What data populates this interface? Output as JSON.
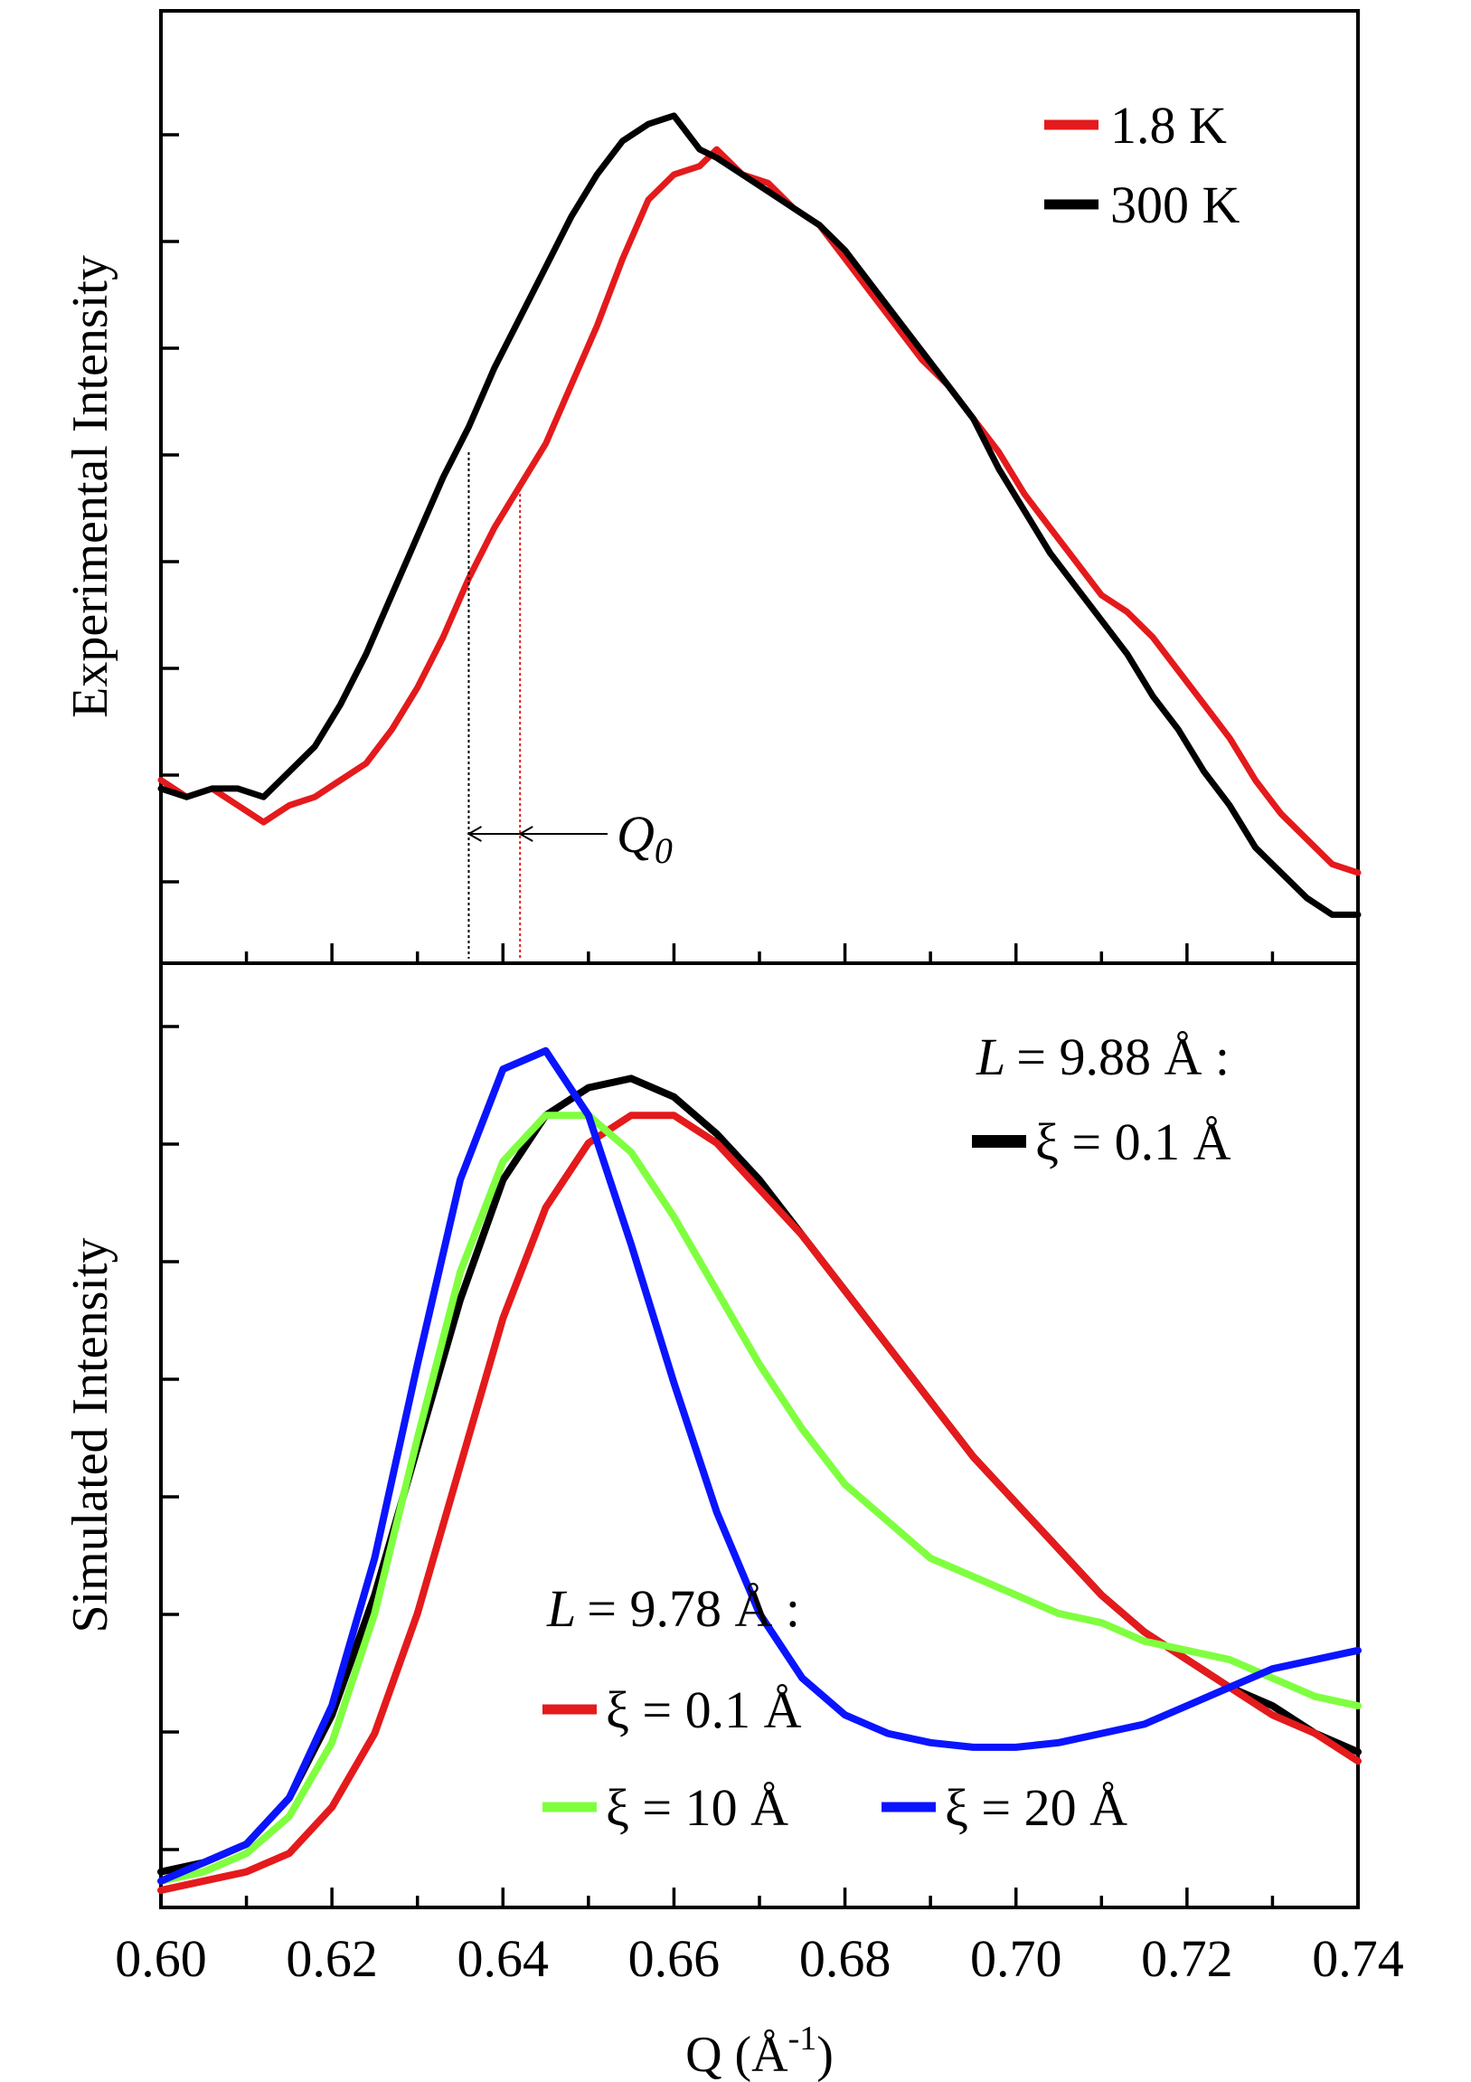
{
  "chart_data": [
    {
      "type": "line",
      "panel": "top",
      "ylabel": "Experimental Intensity",
      "xlim": [
        0.6,
        0.74
      ],
      "x_tick_step": 0.01,
      "y_ticks": "unlabeled",
      "annotation": {
        "text": "Q",
        "subscript": "0",
        "q_300K": 0.636,
        "q_1_8K": 0.642
      },
      "series": [
        {
          "name": "1.8 K",
          "color": "#e41a1c",
          "x": [
            0.6,
            0.603,
            0.606,
            0.609,
            0.612,
            0.615,
            0.618,
            0.621,
            0.624,
            0.627,
            0.63,
            0.633,
            0.636,
            0.639,
            0.642,
            0.645,
            0.648,
            0.651,
            0.654,
            0.657,
            0.66,
            0.663,
            0.665,
            0.668,
            0.671,
            0.674,
            0.677,
            0.68,
            0.683,
            0.686,
            0.689,
            0.692,
            0.695,
            0.698,
            0.701,
            0.704,
            0.707,
            0.71,
            0.713,
            0.716,
            0.719,
            0.722,
            0.725,
            0.728,
            0.731,
            0.734,
            0.737,
            0.74
          ],
          "y": [
            0.18,
            0.16,
            0.17,
            0.15,
            0.13,
            0.15,
            0.16,
            0.18,
            0.2,
            0.24,
            0.29,
            0.35,
            0.42,
            0.48,
            0.53,
            0.58,
            0.65,
            0.72,
            0.8,
            0.87,
            0.9,
            0.91,
            0.93,
            0.9,
            0.89,
            0.86,
            0.84,
            0.8,
            0.76,
            0.72,
            0.68,
            0.65,
            0.61,
            0.57,
            0.52,
            0.48,
            0.44,
            0.4,
            0.38,
            0.35,
            0.31,
            0.27,
            0.23,
            0.18,
            0.14,
            0.11,
            0.08,
            0.07
          ]
        },
        {
          "name": "300 K",
          "color": "#000000",
          "x": [
            0.6,
            0.603,
            0.606,
            0.609,
            0.612,
            0.615,
            0.618,
            0.621,
            0.624,
            0.627,
            0.63,
            0.633,
            0.636,
            0.639,
            0.642,
            0.645,
            0.648,
            0.651,
            0.654,
            0.657,
            0.66,
            0.663,
            0.665,
            0.668,
            0.671,
            0.674,
            0.677,
            0.68,
            0.683,
            0.686,
            0.689,
            0.692,
            0.695,
            0.698,
            0.701,
            0.704,
            0.707,
            0.71,
            0.713,
            0.716,
            0.719,
            0.722,
            0.725,
            0.728,
            0.731,
            0.734,
            0.737,
            0.74
          ],
          "y": [
            0.17,
            0.16,
            0.17,
            0.17,
            0.16,
            0.19,
            0.22,
            0.27,
            0.33,
            0.4,
            0.47,
            0.54,
            0.6,
            0.67,
            0.73,
            0.79,
            0.85,
            0.9,
            0.94,
            0.96,
            0.97,
            0.93,
            0.92,
            0.9,
            0.88,
            0.86,
            0.84,
            0.81,
            0.77,
            0.73,
            0.69,
            0.65,
            0.61,
            0.55,
            0.5,
            0.45,
            0.41,
            0.37,
            0.33,
            0.28,
            0.24,
            0.19,
            0.15,
            0.1,
            0.07,
            0.04,
            0.02,
            0.02
          ]
        }
      ]
    },
    {
      "type": "line",
      "panel": "bottom",
      "ylabel": "Simulated Intensity",
      "xlabel": "Q (Å",
      "xlabel_sup": "-1",
      "xlabel_close": ")",
      "xlim": [
        0.6,
        0.74
      ],
      "x_ticks": [
        "0.60",
        "0.62",
        "0.64",
        "0.66",
        "0.68",
        "0.70",
        "0.72",
        "0.74"
      ],
      "y_ticks": "unlabeled",
      "legend_groups": [
        {
          "heading": "= 9.88 Å :",
          "heading_var": "L",
          "entries": [
            "ξ = 0.1 Å"
          ]
        },
        {
          "heading": "= 9.78 Å :",
          "heading_var": "L",
          "entries": [
            "ξ = 0.1 Å",
            "ξ = 10 Å",
            "ξ = 20 Å"
          ]
        }
      ],
      "series": [
        {
          "name": "ξ = 0.1 Å",
          "group": "L = 9.88 Å",
          "color": "#000000",
          "x": [
            0.6,
            0.605,
            0.61,
            0.615,
            0.62,
            0.625,
            0.63,
            0.635,
            0.64,
            0.645,
            0.65,
            0.655,
            0.66,
            0.665,
            0.67,
            0.675,
            0.68,
            0.685,
            0.69,
            0.695,
            0.7,
            0.705,
            0.71,
            0.715,
            0.72,
            0.725,
            0.73,
            0.735,
            0.74
          ],
          "y": [
            0.02,
            0.03,
            0.05,
            0.1,
            0.19,
            0.32,
            0.48,
            0.64,
            0.77,
            0.84,
            0.87,
            0.88,
            0.86,
            0.82,
            0.77,
            0.71,
            0.65,
            0.59,
            0.53,
            0.47,
            0.42,
            0.37,
            0.32,
            0.28,
            0.25,
            0.22,
            0.2,
            0.17,
            0.15
          ]
        },
        {
          "name": "ξ = 0.1 Å",
          "group": "L = 9.78 Å",
          "color": "#e41a1c",
          "x": [
            0.6,
            0.605,
            0.61,
            0.615,
            0.62,
            0.625,
            0.63,
            0.635,
            0.64,
            0.645,
            0.65,
            0.655,
            0.66,
            0.665,
            0.67,
            0.675,
            0.68,
            0.685,
            0.69,
            0.695,
            0.7,
            0.705,
            0.71,
            0.715,
            0.72,
            0.725,
            0.73,
            0.735,
            0.74
          ],
          "y": [
            0.0,
            0.01,
            0.02,
            0.04,
            0.09,
            0.17,
            0.3,
            0.46,
            0.62,
            0.74,
            0.81,
            0.84,
            0.84,
            0.81,
            0.76,
            0.71,
            0.65,
            0.59,
            0.53,
            0.47,
            0.42,
            0.37,
            0.32,
            0.28,
            0.25,
            0.22,
            0.19,
            0.17,
            0.14
          ]
        },
        {
          "name": "ξ = 10 Å",
          "group": "L = 9.78 Å",
          "color": "#7fff3f",
          "x": [
            0.6,
            0.605,
            0.61,
            0.615,
            0.62,
            0.625,
            0.63,
            0.635,
            0.64,
            0.645,
            0.65,
            0.655,
            0.66,
            0.665,
            0.67,
            0.675,
            0.68,
            0.685,
            0.69,
            0.695,
            0.7,
            0.705,
            0.71,
            0.715,
            0.72,
            0.725,
            0.73,
            0.735,
            0.74
          ],
          "y": [
            0.01,
            0.02,
            0.04,
            0.08,
            0.16,
            0.3,
            0.49,
            0.67,
            0.79,
            0.84,
            0.84,
            0.8,
            0.73,
            0.65,
            0.57,
            0.5,
            0.44,
            0.4,
            0.36,
            0.34,
            0.32,
            0.3,
            0.29,
            0.27,
            0.26,
            0.25,
            0.23,
            0.21,
            0.2
          ]
        },
        {
          "name": "ξ = 20 Å",
          "group": "L = 9.78 Å",
          "color": "#0a14ff",
          "x": [
            0.6,
            0.605,
            0.61,
            0.615,
            0.62,
            0.625,
            0.63,
            0.635,
            0.64,
            0.645,
            0.65,
            0.655,
            0.66,
            0.665,
            0.67,
            0.675,
            0.68,
            0.685,
            0.69,
            0.695,
            0.7,
            0.705,
            0.71,
            0.715,
            0.72,
            0.725,
            0.73,
            0.735,
            0.74
          ],
          "y": [
            0.01,
            0.03,
            0.05,
            0.1,
            0.2,
            0.36,
            0.57,
            0.77,
            0.89,
            0.91,
            0.84,
            0.7,
            0.55,
            0.41,
            0.3,
            0.23,
            0.19,
            0.17,
            0.16,
            0.155,
            0.155,
            0.16,
            0.17,
            0.18,
            0.2,
            0.22,
            0.24,
            0.25,
            0.26
          ]
        }
      ]
    }
  ]
}
